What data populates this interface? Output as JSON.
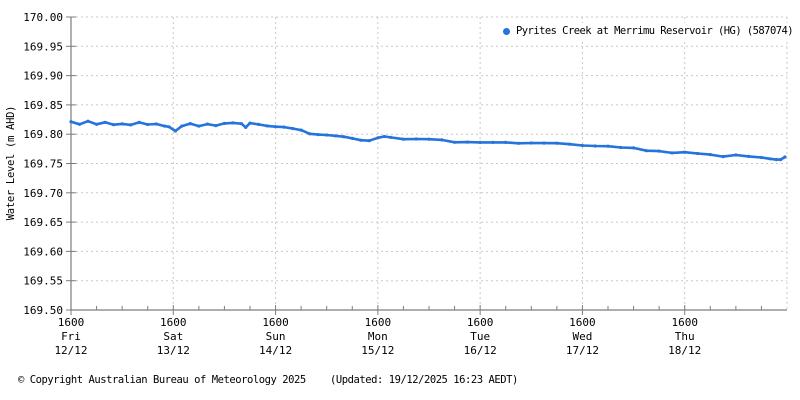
{
  "meta": {
    "copyright": "© Copyright Australian Bureau of Meteorology 2025",
    "updated": "(Updated: 19/12/2025 16:23 AEDT)"
  },
  "legend": {
    "label": "Pyrites Creek at Merrimu Reservoir (HG) (587074)",
    "marker_color": "#2573dc"
  },
  "chart_data": {
    "type": "scatter",
    "title": "",
    "xlabel": "",
    "ylabel": "Water Level (m AHD)",
    "ylim": [
      169.5,
      170.0
    ],
    "y_tick_labels": [
      "170.00",
      "169.95",
      "169.90",
      "169.85",
      "169.80",
      "169.75",
      "169.70",
      "169.65",
      "169.60",
      "169.55",
      "169.50"
    ],
    "x_range_hours": [
      0,
      168
    ],
    "minor_x_tick_hours": 6,
    "grid": true,
    "legend_position": "top-right",
    "colors": {
      "series": "#2573dc",
      "grid": "#c8c8c8",
      "axis": "#7d7d7d",
      "text": "#000000"
    },
    "x_ticks": [
      {
        "hour": 0,
        "time": "1600",
        "day": "Fri",
        "date": "12/12"
      },
      {
        "hour": 24,
        "time": "1600",
        "day": "Sat",
        "date": "13/12"
      },
      {
        "hour": 48,
        "time": "1600",
        "day": "Sun",
        "date": "14/12"
      },
      {
        "hour": 72,
        "time": "1600",
        "day": "Mon",
        "date": "15/12"
      },
      {
        "hour": 96,
        "time": "1600",
        "day": "Tue",
        "date": "16/12"
      },
      {
        "hour": 120,
        "time": "1600",
        "day": "Wed",
        "date": "17/12"
      },
      {
        "hour": 144,
        "time": "1600",
        "day": "Thu",
        "date": "18/12"
      }
    ],
    "series": [
      {
        "name": "Pyrites Creek at Merrimu Reservoir (HG) (587074)",
        "units": "m AHD",
        "points": [
          [
            0,
            169.82
          ],
          [
            2,
            169.818
          ],
          [
            4,
            169.821
          ],
          [
            6,
            169.817
          ],
          [
            8,
            169.82
          ],
          [
            10,
            169.816
          ],
          [
            12,
            169.818
          ],
          [
            14,
            169.815
          ],
          [
            16,
            169.817
          ],
          [
            18,
            169.814
          ],
          [
            20,
            169.816
          ],
          [
            22,
            169.812
          ],
          [
            23,
            169.809
          ],
          [
            24.5,
            169.804
          ],
          [
            26,
            169.812
          ],
          [
            28,
            169.818
          ],
          [
            30,
            169.815
          ],
          [
            32,
            169.817
          ],
          [
            34,
            169.815
          ],
          [
            36,
            169.818
          ],
          [
            38,
            169.82
          ],
          [
            40,
            169.818
          ],
          [
            41,
            169.812
          ],
          [
            42,
            169.816
          ],
          [
            44,
            169.813
          ],
          [
            46,
            169.811
          ],
          [
            48,
            169.81
          ],
          [
            50,
            169.808
          ],
          [
            52,
            169.806
          ],
          [
            54,
            169.804
          ],
          [
            56,
            169.802
          ],
          [
            58,
            169.8
          ],
          [
            60,
            169.798
          ],
          [
            62,
            169.797
          ],
          [
            64,
            169.795
          ],
          [
            66,
            169.793
          ],
          [
            68,
            169.791
          ],
          [
            70,
            169.79
          ],
          [
            72,
            169.791
          ],
          [
            73.5,
            169.794
          ],
          [
            75,
            169.792
          ],
          [
            78,
            169.79
          ],
          [
            81,
            169.789
          ],
          [
            84,
            169.788
          ],
          [
            87,
            169.788
          ],
          [
            90,
            169.787
          ],
          [
            93,
            169.786
          ],
          [
            96,
            169.786
          ],
          [
            99,
            169.785
          ],
          [
            102,
            169.785
          ],
          [
            105,
            169.784
          ],
          [
            108,
            169.784
          ],
          [
            111,
            169.783
          ],
          [
            114,
            169.782
          ],
          [
            117,
            169.78
          ],
          [
            120,
            169.779
          ],
          [
            123,
            169.777
          ],
          [
            126,
            169.776
          ],
          [
            129,
            169.774
          ],
          [
            132,
            169.773
          ],
          [
            135,
            169.771
          ],
          [
            138,
            169.77
          ],
          [
            141,
            169.769
          ],
          [
            144,
            169.768
          ],
          [
            147,
            169.766
          ],
          [
            150,
            169.764
          ],
          [
            153,
            169.762
          ],
          [
            156,
            169.761
          ],
          [
            159,
            169.759
          ],
          [
            162,
            169.757
          ],
          [
            164,
            169.755
          ],
          [
            165.5,
            169.754
          ],
          [
            166.5,
            169.753
          ],
          [
            167.5,
            169.757
          ]
        ]
      }
    ]
  }
}
